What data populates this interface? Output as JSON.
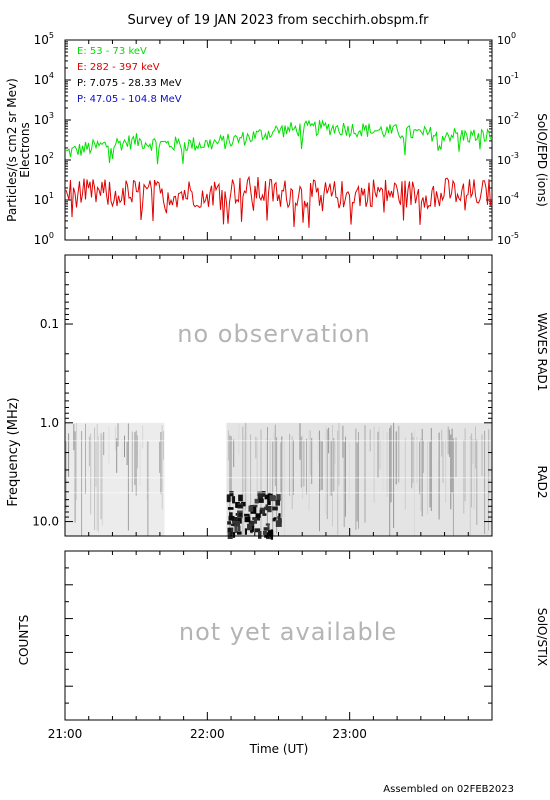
{
  "title": "Survey of 19 JAN 2023 from secchirh.obspm.fr",
  "footer": "Assembled on 02FEB2023",
  "chart_data": [
    {
      "type": "line",
      "panel": "particles",
      "ylabel": "Particles/(s cm2 sr Mev)",
      "ylabel2": "Electrons",
      "right_label": "SolO/EPD (ions)",
      "yscale": "log",
      "ylim": [
        1,
        100000
      ],
      "yticks": [
        {
          "b": "10",
          "e": "0"
        },
        {
          "b": "10",
          "e": "1"
        },
        {
          "b": "10",
          "e": "2"
        },
        {
          "b": "10",
          "e": "3"
        },
        {
          "b": "10",
          "e": "4"
        },
        {
          "b": "10",
          "e": "5"
        }
      ],
      "y2scale": "log",
      "y2lim": [
        1e-05,
        1
      ],
      "y2ticks": [
        {
          "b": "10",
          "e": "-5"
        },
        {
          "b": "10",
          "e": "-4"
        },
        {
          "b": "10",
          "e": "-3"
        },
        {
          "b": "10",
          "e": "-2"
        },
        {
          "b": "10",
          "e": "-1"
        },
        {
          "b": "10",
          "e": "0"
        }
      ],
      "legend_position": "top-left",
      "series": [
        {
          "name": "E: 53 - 73 keV",
          "color": "#00e000",
          "axis": "left",
          "x": [
            "21:00",
            "21:10",
            "21:20",
            "21:30",
            "21:40",
            "21:50",
            "22:00",
            "22:10",
            "22:20",
            "22:30",
            "22:40",
            "22:50",
            "23:00",
            "23:10",
            "23:20",
            "23:30",
            "23:40",
            "23:50",
            "24:00"
          ],
          "values": [
            150,
            200,
            250,
            300,
            250,
            250,
            250,
            300,
            400,
            550,
            600,
            650,
            600,
            550,
            500,
            450,
            450,
            400,
            400
          ]
        },
        {
          "name": "E: 282 - 397 keV",
          "color": "#e00000",
          "axis": "left",
          "x": [
            "21:00",
            "21:10",
            "21:20",
            "21:30",
            "21:40",
            "21:50",
            "22:00",
            "22:10",
            "22:20",
            "22:30",
            "22:40",
            "22:50",
            "23:00",
            "23:10",
            "23:20",
            "23:30",
            "23:40",
            "23:50",
            "24:00"
          ],
          "values": [
            15,
            15,
            14,
            15,
            14,
            15,
            15,
            18,
            17,
            15,
            14,
            13,
            14,
            16,
            15,
            14,
            16,
            15,
            15
          ]
        },
        {
          "name": "P: 7.075 - 28.33 MeV",
          "color": "#000000",
          "axis": "right",
          "x": [],
          "values": []
        },
        {
          "name": "P: 47.05 - 104.8 MeV",
          "color": "#1010c8",
          "axis": "right",
          "x": [],
          "values": []
        }
      ]
    },
    {
      "type": "heatmap",
      "panel": "radio",
      "ylabel": "Frequency (MHz)",
      "yscale": "log",
      "ylim": [
        0.02,
        14
      ],
      "yticks": [
        "0.1",
        "1.0",
        "10.0"
      ],
      "right_labels": [
        "WAVES RAD1",
        "RAD2"
      ],
      "annotation": "no observation",
      "rad2_range_mhz": [
        1.0,
        14
      ],
      "data_gaps": [
        [
          "21:42",
          "22:08"
        ]
      ],
      "enhanced_activity": [
        [
          "22:08",
          "22:30"
        ]
      ]
    },
    {
      "type": "line",
      "panel": "stix",
      "ylabel": "COUNTS",
      "right_label": "SolO/STIX",
      "annotation": "not yet available",
      "xlabel": "Time (UT)",
      "xticks": [
        "21:00",
        "22:00",
        "23:00"
      ],
      "xlim": [
        "21:00",
        "24:00"
      ]
    }
  ]
}
